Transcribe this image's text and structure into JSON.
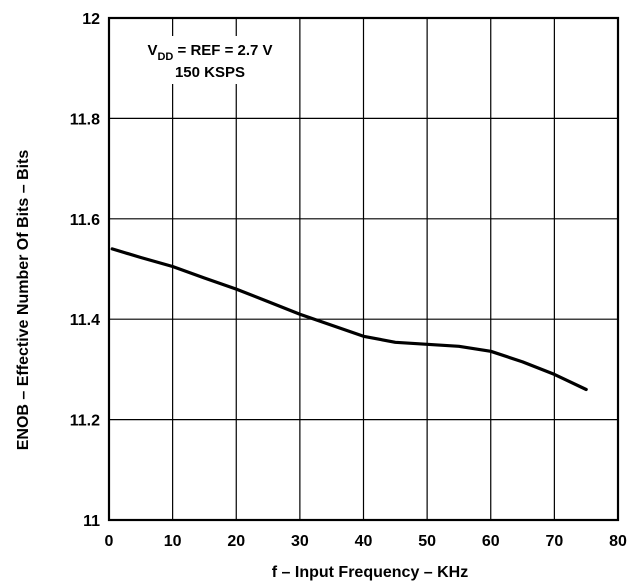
{
  "chart_data": {
    "type": "line",
    "title": "",
    "xlabel": "f – Input Frequency – KHz",
    "ylabel": "ENOB – Effective Number Of Bits – Bits",
    "xlim": [
      0,
      80
    ],
    "ylim": [
      11,
      12
    ],
    "x_ticks": [
      "0",
      "10",
      "20",
      "30",
      "40",
      "50",
      "60",
      "70",
      "80"
    ],
    "y_ticks": [
      "11",
      "11.2",
      "11.4",
      "11.6",
      "11.8",
      "12"
    ],
    "grid": true,
    "annotation": {
      "line1_prefix": "V",
      "line1_subscript": "DD",
      "line1_suffix": " = REF = 2.7 V",
      "line2": "150 KSPS"
    },
    "series": [
      {
        "x": [
          0.5,
          5,
          10,
          15,
          20,
          25,
          30,
          35,
          40,
          45,
          50,
          55,
          60,
          65,
          70,
          75
        ],
        "values": [
          11.54,
          11.523,
          11.505,
          11.482,
          11.46,
          11.435,
          11.41,
          11.388,
          11.366,
          11.354,
          11.35,
          11.346,
          11.336,
          11.315,
          11.29,
          11.26
        ]
      }
    ]
  }
}
